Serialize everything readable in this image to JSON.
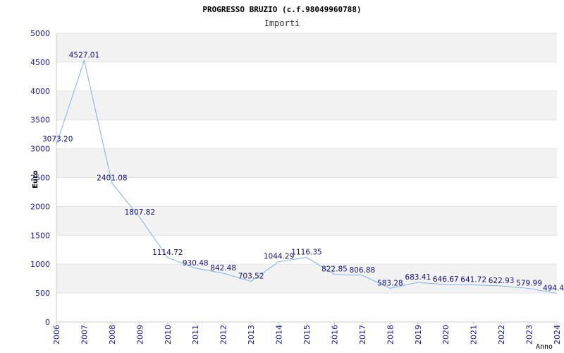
{
  "chart_data": {
    "type": "line",
    "title": "PROGRESSO BRUZIO (c.f.98049960788)",
    "subtitle": "Importi",
    "ylabel": "Euro",
    "xlabel": "Anno",
    "ylim": [
      0,
      5000
    ],
    "yticks": [
      "0",
      "500",
      "1000",
      "1500",
      "2000",
      "2500",
      "3000",
      "3500",
      "4000",
      "4500",
      "5000"
    ],
    "grid": "horizontal-bands",
    "x": [
      "2006",
      "2007",
      "2008",
      "2009",
      "2010",
      "2011",
      "2012",
      "2013",
      "2014",
      "2015",
      "2016",
      "2017",
      "2018",
      "2019",
      "2020",
      "2021",
      "2022",
      "2023",
      "2024"
    ],
    "values": [
      3073.2,
      4527.01,
      2401.08,
      1807.82,
      1114.72,
      930.48,
      842.48,
      703.52,
      1044.29,
      1116.35,
      822.85,
      806.88,
      583.28,
      683.41,
      646.67,
      641.72,
      622.93,
      579.99,
      494.4
    ],
    "data_labels": [
      "3073.20",
      "4527.01",
      "2401.08",
      "1807.82",
      "1114.72",
      "930.48",
      "842.48",
      "703.52",
      "1044.29",
      "1116.35",
      "822.85",
      "806.88",
      "583.28",
      "683.41",
      "646.67",
      "641.72",
      "622.93",
      "579.99",
      "494.4"
    ],
    "line_color": "#7fb2e6",
    "label_color": "#111177",
    "tick_color": "#1a1aa6",
    "band_color": "#f2f2f2"
  }
}
